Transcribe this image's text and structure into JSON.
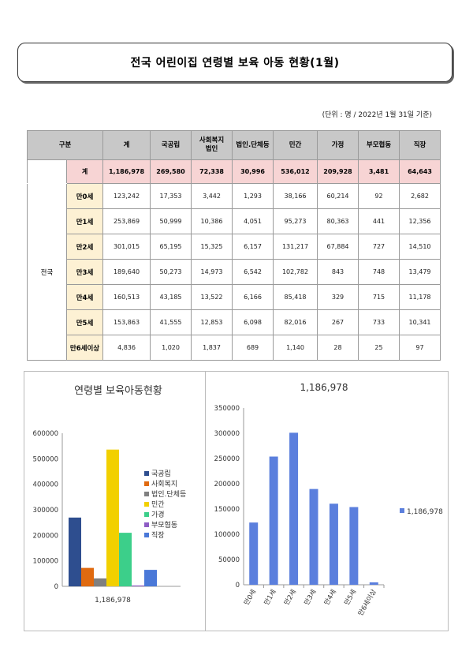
{
  "title": "전국 어린이집 연령별 보육 아동 현황(1월)",
  "unit_note": "(단위 : 명 / 2022년 1월 31일 기준)",
  "table": {
    "header_group": "구분",
    "columns": [
      "계",
      "국공립",
      "사회복지\n법인",
      "법인.단체등",
      "민간",
      "가정",
      "부모협동",
      "직장"
    ],
    "total_label": "계",
    "total": [
      "1,186,978",
      "269,580",
      "72,338",
      "30,996",
      "536,012",
      "209,928",
      "3,481",
      "64,643"
    ],
    "region": "전국",
    "rows": [
      {
        "label": "만0세",
        "values": [
          "123,242",
          "17,353",
          "3,442",
          "1,293",
          "38,166",
          "60,214",
          "92",
          "2,682"
        ]
      },
      {
        "label": "만1세",
        "values": [
          "253,869",
          "50,999",
          "10,386",
          "4,051",
          "95,273",
          "80,363",
          "441",
          "12,356"
        ]
      },
      {
        "label": "만2세",
        "values": [
          "301,015",
          "65,195",
          "15,325",
          "6,157",
          "131,217",
          "67,884",
          "727",
          "14,510"
        ]
      },
      {
        "label": "만3세",
        "values": [
          "189,640",
          "50,273",
          "14,973",
          "6,542",
          "102,782",
          "843",
          "748",
          "13,479"
        ]
      },
      {
        "label": "만4세",
        "values": [
          "160,513",
          "43,185",
          "13,522",
          "6,166",
          "85,418",
          "329",
          "715",
          "11,178"
        ]
      },
      {
        "label": "만5세",
        "values": [
          "153,863",
          "41,555",
          "12,853",
          "6,098",
          "82,016",
          "267",
          "733",
          "10,341"
        ]
      },
      {
        "label": "만6세이상",
        "values": [
          "4,836",
          "1,020",
          "1,837",
          "689",
          "1,140",
          "28",
          "25",
          "97"
        ]
      }
    ]
  },
  "chart_data": [
    {
      "type": "bar",
      "title": "연령별 보육아동현황",
      "categories": [
        "1,186,978"
      ],
      "ylim": [
        0,
        600000
      ],
      "yticks": [
        "0",
        "100000",
        "200000",
        "300000",
        "400000",
        "500000",
        "600000"
      ],
      "legend_position": "right",
      "grid": false,
      "series": [
        {
          "name": "국공립",
          "values": [
            269580
          ],
          "color": "#2e4e8f"
        },
        {
          "name": "사회복지",
          "values": [
            72338
          ],
          "color": "#e06a10"
        },
        {
          "name": "법인.단체등",
          "values": [
            30996
          ],
          "color": "#808080"
        },
        {
          "name": "민간",
          "values": [
            536012
          ],
          "color": "#f2d000"
        },
        {
          "name": "가경",
          "values": [
            209928
          ],
          "color": "#3ccf8a"
        },
        {
          "name": "부모협동",
          "values": [
            3481
          ],
          "color": "#8e5cc4"
        },
        {
          "name": "직장",
          "values": [
            64643
          ],
          "color": "#4a78d8"
        }
      ]
    },
    {
      "type": "bar",
      "title": "1,186,978",
      "categories": [
        "만0세",
        "만1세",
        "만2세",
        "만3세",
        "만4세",
        "만5세",
        "만6세이상"
      ],
      "ylim": [
        0,
        350000
      ],
      "yticks": [
        "0",
        "50000",
        "100000",
        "150000",
        "200000",
        "250000",
        "300000",
        "350000"
      ],
      "legend_position": "right",
      "grid": false,
      "series": [
        {
          "name": "1,186,978",
          "values": [
            123242,
            253869,
            301015,
            189640,
            160513,
            153863,
            4836
          ],
          "color": "#5b7fdd"
        }
      ]
    }
  ]
}
